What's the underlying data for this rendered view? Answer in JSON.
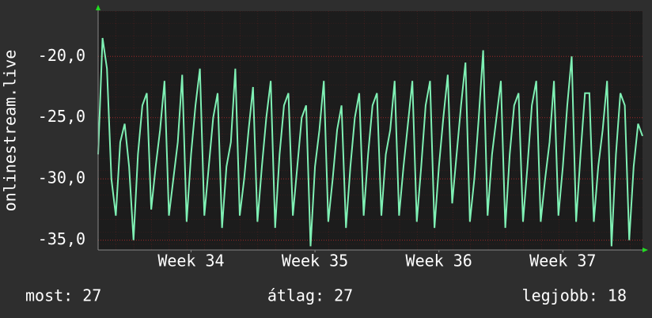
{
  "chart_data": {
    "type": "line",
    "ylabel": "onlinestream.live",
    "color": "#7ff0b4",
    "values": [
      -28,
      -18.5,
      -21,
      -30,
      -33,
      -27,
      -25.5,
      -29,
      -35,
      -28,
      -24,
      -23,
      -32.5,
      -29,
      -26,
      -22,
      -33,
      -30,
      -27,
      -21.5,
      -33.5,
      -28,
      -24,
      -21,
      -33,
      -29,
      -25,
      -23,
      -34,
      -29,
      -27,
      -21,
      -33,
      -30,
      -26,
      -22.5,
      -33.5,
      -29,
      -25,
      -22,
      -34,
      -28,
      -24,
      -23,
      -33,
      -29,
      -25,
      -24,
      -35.5,
      -29,
      -26,
      -22,
      -33.5,
      -30,
      -26,
      -24,
      -34,
      -29,
      -25,
      -23,
      -33,
      -28,
      -24,
      -23,
      -33,
      -28,
      -26,
      -22,
      -33,
      -29,
      -25.5,
      -22,
      -33.5,
      -29,
      -24,
      -22,
      -34,
      -29,
      -25,
      -21.5,
      -32,
      -28,
      -24,
      -20.5,
      -33.5,
      -30,
      -25,
      -19.5,
      -33,
      -28,
      -25,
      -22,
      -34,
      -28,
      -24,
      -23,
      -33.5,
      -29,
      -24,
      -22,
      -33.5,
      -30,
      -27,
      -22,
      -33,
      -29,
      -24,
      -20,
      -33.5,
      -28,
      -23,
      -23,
      -33.5,
      -29,
      -26,
      -22,
      -35.5,
      -28,
      -23,
      -24,
      -35,
      -29,
      -25.5,
      -26.5
    ],
    "xlim": [
      0,
      123
    ],
    "xticks": [
      {
        "value": 21,
        "label": "Week 34"
      },
      {
        "value": 49,
        "label": "Week 35"
      },
      {
        "value": 77,
        "label": "Week 36"
      },
      {
        "value": 105,
        "label": "Week 37"
      }
    ],
    "ylim": [
      -35.8,
      -16.3
    ],
    "yticks": [
      {
        "value": -20,
        "label": "-20,0"
      },
      {
        "value": -25,
        "label": "-25,0"
      },
      {
        "value": -30,
        "label": "-30,0"
      },
      {
        "value": -35,
        "label": "-35,0"
      }
    ],
    "grid": true,
    "stats": [
      "most: 27",
      "átlag: 27",
      "legjobb: 18"
    ]
  }
}
